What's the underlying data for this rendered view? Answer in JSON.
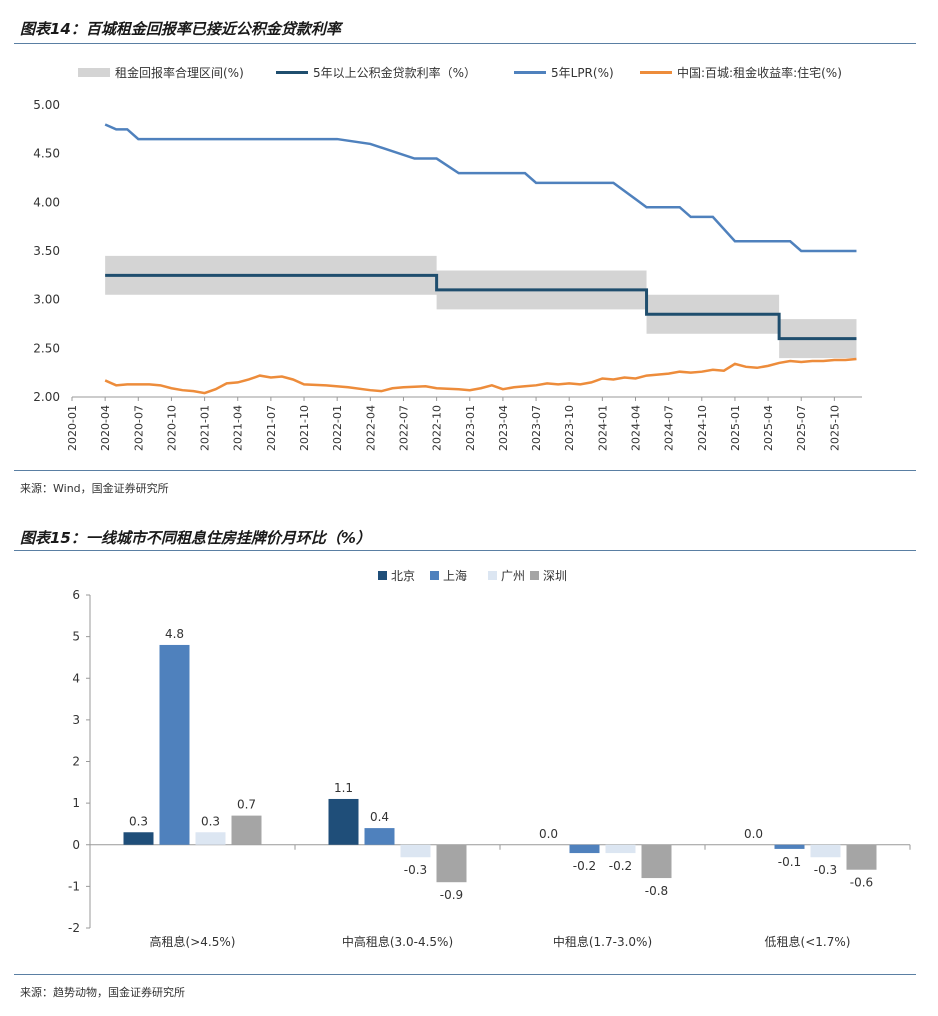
{
  "chart1": {
    "heading": "图表14：百城租金回报率已接近公积金贷款利率",
    "source": "来源：Wind，国金证券研究所",
    "legend": [
      {
        "label": "租金回报率合理区间(%)",
        "color": "#d4d4d4"
      },
      {
        "label": "5年以上公积金贷款利率（%）",
        "color": "#1f4e6e"
      },
      {
        "label": "5年LPR(%)",
        "color": "#4f81bd"
      },
      {
        "label": "中国:百城:租金收益率:住宅(%)",
        "color": "#ed8c3b"
      }
    ],
    "y_ticks": [
      "5.00",
      "4.50",
      "4.00",
      "3.50",
      "3.00",
      "2.50",
      "2.00"
    ],
    "x_ticks": [
      "2020-01",
      "2020-04",
      "2020-07",
      "2020-10",
      "2021-01",
      "2021-04",
      "2021-07",
      "2021-10",
      "2022-01",
      "2022-04",
      "2022-07",
      "2022-10",
      "2023-01",
      "2023-04",
      "2023-07",
      "2023-10",
      "2024-01",
      "2024-04",
      "2024-07",
      "2024-10",
      "2025-01",
      "2025-04",
      "2025-07",
      "2025-10"
    ]
  },
  "chart2": {
    "heading": "图表15：一线城市不同租息住房挂牌价月环比（%）",
    "source": "来源：趋势动物，国金证券研究所",
    "y_ticks": [
      "6",
      "5",
      "4",
      "3",
      "2",
      "1",
      "0",
      "-1",
      "-2"
    ]
  },
  "chart_data": [
    {
      "type": "line",
      "title": "百城租金回报率已接近公积金贷款利率",
      "xlabel": "",
      "ylabel": "",
      "ylim": [
        2.0,
        5.0
      ],
      "x_unit": "month",
      "x_start": "2020-04",
      "x_end": "2025-12",
      "series": [
        {
          "name": "5年以上公积金贷款利率（%）",
          "steps": [
            [
              "2020-04",
              3.25
            ],
            [
              "2022-10",
              3.1
            ],
            [
              "2024-05",
              2.85
            ],
            [
              "2025-05",
              2.6
            ],
            [
              "2025-12",
              2.6
            ]
          ]
        },
        {
          "name": "5年LPR(%)",
          "steps": [
            [
              "2020-04",
              4.8
            ],
            [
              "2020-05",
              4.75
            ],
            [
              "2020-06",
              4.75
            ],
            [
              "2020-07",
              4.65
            ],
            [
              "2022-01",
              4.65
            ],
            [
              "2022-04",
              4.6
            ],
            [
              "2022-08",
              4.45
            ],
            [
              "2022-10",
              4.45
            ],
            [
              "2022-12",
              4.3
            ],
            [
              "2023-06",
              4.3
            ],
            [
              "2023-07",
              4.2
            ],
            [
              "2024-02",
              4.2
            ],
            [
              "2024-05",
              3.95
            ],
            [
              "2024-08",
              3.95
            ],
            [
              "2024-09",
              3.85
            ],
            [
              "2024-11",
              3.85
            ],
            [
              "2025-01",
              3.6
            ],
            [
              "2025-06",
              3.6
            ],
            [
              "2025-07",
              3.5
            ],
            [
              "2025-12",
              3.5
            ]
          ]
        },
        {
          "name": "租金回报率合理区间(%)",
          "band": [
            [
              "2020-04",
              3.05,
              3.45
            ],
            [
              "2022-10",
              2.9,
              3.3
            ],
            [
              "2024-05",
              2.65,
              3.05
            ],
            [
              "2025-05",
              2.4,
              2.8
            ],
            [
              "2025-12",
              2.4,
              2.8
            ]
          ]
        },
        {
          "name": "中国:百城:租金收益率:住宅(%)",
          "points": [
            [
              "2020-04",
              2.17
            ],
            [
              "2020-05",
              2.12
            ],
            [
              "2020-06",
              2.13
            ],
            [
              "2020-08",
              2.13
            ],
            [
              "2020-09",
              2.12
            ],
            [
              "2020-10",
              2.09
            ],
            [
              "2020-11",
              2.07
            ],
            [
              "2020-12",
              2.06
            ],
            [
              "2021-01",
              2.04
            ],
            [
              "2021-02",
              2.08
            ],
            [
              "2021-03",
              2.14
            ],
            [
              "2021-04",
              2.15
            ],
            [
              "2021-05",
              2.18
            ],
            [
              "2021-06",
              2.22
            ],
            [
              "2021-07",
              2.2
            ],
            [
              "2021-08",
              2.21
            ],
            [
              "2021-09",
              2.18
            ],
            [
              "2021-10",
              2.13
            ],
            [
              "2021-12",
              2.12
            ],
            [
              "2022-02",
              2.1
            ],
            [
              "2022-04",
              2.07
            ],
            [
              "2022-05",
              2.06
            ],
            [
              "2022-06",
              2.09
            ],
            [
              "2022-07",
              2.1
            ],
            [
              "2022-09",
              2.11
            ],
            [
              "2022-10",
              2.09
            ],
            [
              "2022-12",
              2.08
            ],
            [
              "2023-01",
              2.07
            ],
            [
              "2023-02",
              2.09
            ],
            [
              "2023-03",
              2.12
            ],
            [
              "2023-04",
              2.08
            ],
            [
              "2023-05",
              2.1
            ],
            [
              "2023-06",
              2.11
            ],
            [
              "2023-07",
              2.12
            ],
            [
              "2023-08",
              2.14
            ],
            [
              "2023-09",
              2.13
            ],
            [
              "2023-10",
              2.14
            ],
            [
              "2023-11",
              2.13
            ],
            [
              "2023-12",
              2.15
            ],
            [
              "2024-01",
              2.19
            ],
            [
              "2024-02",
              2.18
            ],
            [
              "2024-03",
              2.2
            ],
            [
              "2024-04",
              2.19
            ],
            [
              "2024-05",
              2.22
            ],
            [
              "2024-06",
              2.23
            ],
            [
              "2024-07",
              2.24
            ],
            [
              "2024-08",
              2.26
            ],
            [
              "2024-09",
              2.25
            ],
            [
              "2024-10",
              2.26
            ],
            [
              "2024-11",
              2.28
            ],
            [
              "2024-12",
              2.27
            ],
            [
              "2025-01",
              2.34
            ],
            [
              "2025-02",
              2.31
            ],
            [
              "2025-03",
              2.3
            ],
            [
              "2025-04",
              2.32
            ],
            [
              "2025-05",
              2.35
            ],
            [
              "2025-06",
              2.37
            ],
            [
              "2025-07",
              2.36
            ],
            [
              "2025-08",
              2.37
            ],
            [
              "2025-09",
              2.37
            ],
            [
              "2025-10",
              2.38
            ],
            [
              "2025-11",
              2.38
            ],
            [
              "2025-12",
              2.39
            ]
          ]
        }
      ]
    },
    {
      "type": "bar",
      "title": "一线城市不同租息住房挂牌价月环比（%）",
      "xlabel": "",
      "ylabel": "",
      "ylim": [
        -2,
        6
      ],
      "categories": [
        "高租息(>4.5%)",
        "中高租息(3.0-4.5%)",
        "中租息(1.7-3.0%)",
        "低租息(<1.7%)"
      ],
      "series": [
        {
          "name": "北京",
          "color": "#1f4e79",
          "values": [
            0.3,
            1.1,
            0.0,
            0.0
          ]
        },
        {
          "name": "上海",
          "color": "#4f81bd",
          "values": [
            4.8,
            0.4,
            -0.2,
            -0.1
          ]
        },
        {
          "name": "广州",
          "color": "#dce6f2",
          "values": [
            0.3,
            -0.3,
            -0.2,
            -0.3
          ]
        },
        {
          "name": "深圳",
          "color": "#a5a5a5",
          "values": [
            0.7,
            -0.9,
            -0.8,
            -0.6
          ]
        }
      ],
      "data_labels": [
        [
          "0.3",
          "4.8",
          "0.3",
          "0.7"
        ],
        [
          "1.1",
          "0.4",
          "-0.3",
          "-0.9"
        ],
        [
          "0.0",
          "-0.2",
          "-0.2",
          "-0.8"
        ],
        [
          "0.0",
          "-0.1",
          "-0.3",
          "-0.6"
        ]
      ]
    }
  ]
}
